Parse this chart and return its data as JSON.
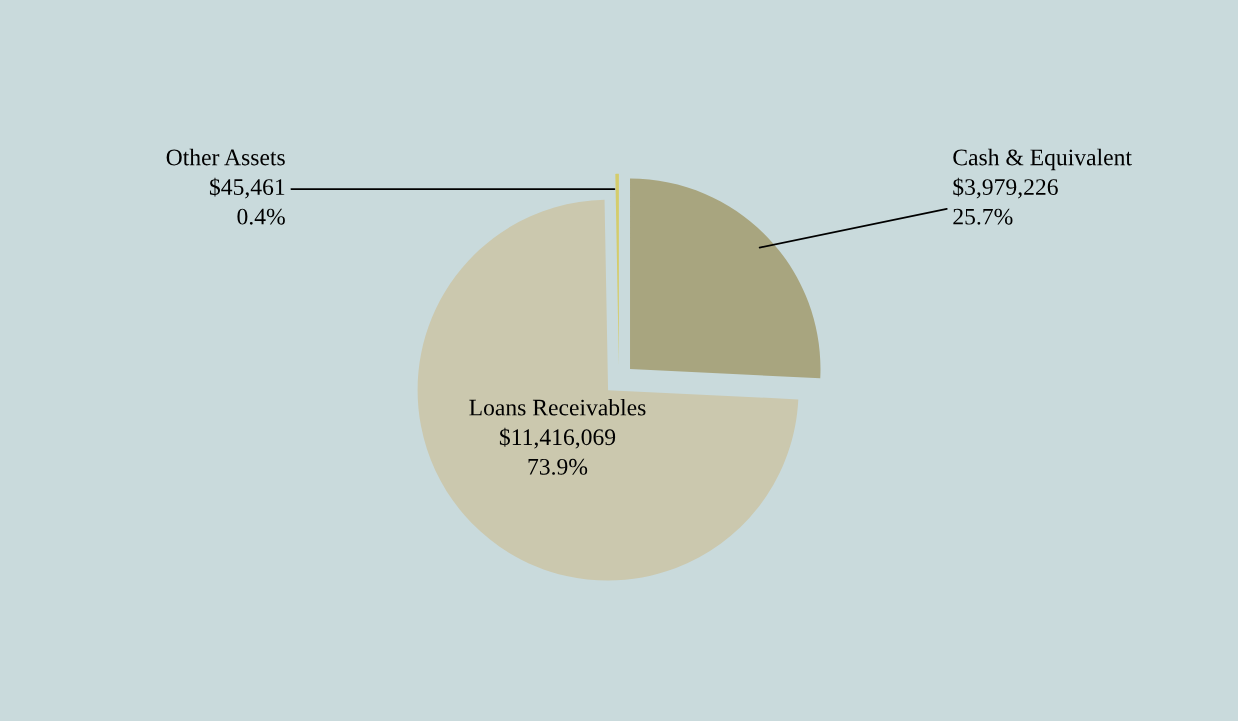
{
  "chart_data": {
    "type": "pie",
    "categories": [
      "Cash & Equivalent",
      "Loans Receivables",
      "Other Assets"
    ],
    "values": [
      3979226,
      11416069,
      45461
    ],
    "value_labels": [
      "$3,979,226\n25.7%",
      "$11,416,069\n73.9%",
      "$45,461\n0.4%"
    ],
    "colors": [
      "#a8a57f",
      "#cbc8ae",
      "#d4cc6c"
    ]
  }
}
